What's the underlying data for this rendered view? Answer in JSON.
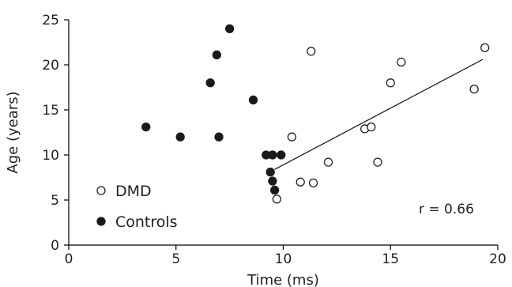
{
  "chart_data": {
    "type": "scatter",
    "xlabel": "Time (ms)",
    "ylabel": "Age (years)",
    "xlim": [
      0,
      20
    ],
    "ylim": [
      0,
      25
    ],
    "xticks": [
      "0",
      "5",
      "10",
      "15",
      "20"
    ],
    "yticks": [
      "0",
      "5",
      "10",
      "15",
      "20",
      "25"
    ],
    "legend_position": "bottom-left",
    "series": [
      {
        "name": "DMD",
        "marker": "open-circle",
        "color": "#222222",
        "points": [
          {
            "x": 9.7,
            "y": 5.1
          },
          {
            "x": 10.8,
            "y": 7.0
          },
          {
            "x": 11.4,
            "y": 6.9
          },
          {
            "x": 12.1,
            "y": 9.2
          },
          {
            "x": 10.4,
            "y": 12.0
          },
          {
            "x": 11.3,
            "y": 21.5
          },
          {
            "x": 13.8,
            "y": 12.9
          },
          {
            "x": 14.1,
            "y": 13.1
          },
          {
            "x": 14.4,
            "y": 9.2
          },
          {
            "x": 15.0,
            "y": 18.0
          },
          {
            "x": 15.5,
            "y": 20.3
          },
          {
            "x": 18.9,
            "y": 17.3
          },
          {
            "x": 19.4,
            "y": 21.9
          }
        ]
      },
      {
        "name": "Controls",
        "marker": "filled-circle",
        "color": "#1a1a1a",
        "points": [
          {
            "x": 3.6,
            "y": 13.1
          },
          {
            "x": 5.2,
            "y": 12.0
          },
          {
            "x": 6.6,
            "y": 18.0
          },
          {
            "x": 6.9,
            "y": 21.1
          },
          {
            "x": 7.0,
            "y": 12.0
          },
          {
            "x": 7.5,
            "y": 24.0
          },
          {
            "x": 8.6,
            "y": 16.1
          },
          {
            "x": 9.2,
            "y": 10.0
          },
          {
            "x": 9.5,
            "y": 10.0
          },
          {
            "x": 9.9,
            "y": 10.0
          },
          {
            "x": 9.4,
            "y": 8.1
          },
          {
            "x": 9.5,
            "y": 7.1
          },
          {
            "x": 9.6,
            "y": 6.1
          }
        ]
      }
    ],
    "fit_line": {
      "series": "DMD",
      "x": [
        9.6,
        19.3
      ],
      "y": [
        8.4,
        20.6
      ]
    },
    "annotations": [
      {
        "text": "r = 0.66"
      }
    ]
  }
}
